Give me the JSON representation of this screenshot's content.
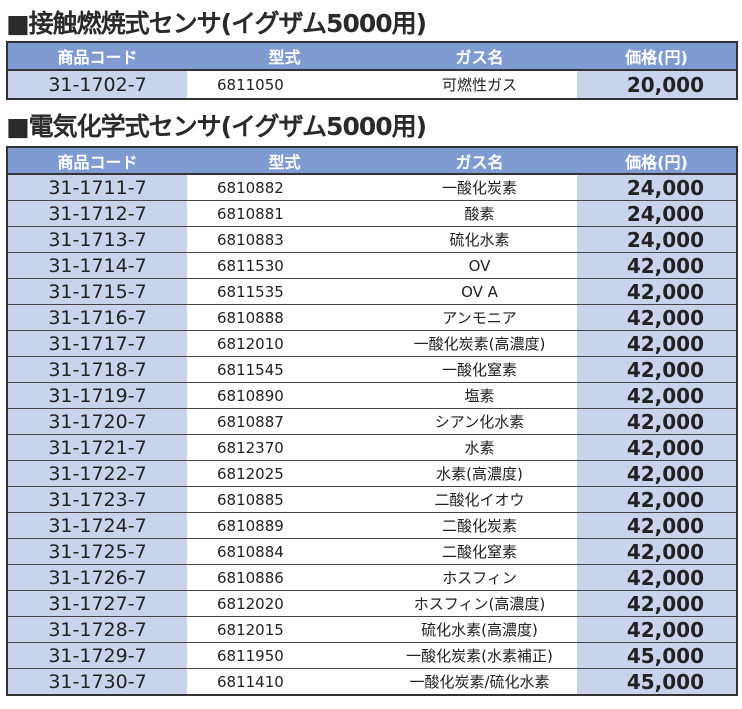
{
  "section1": {
    "title": "■接触燃焼式センサ(イグザム5000用)",
    "headers": [
      "商品コード",
      "型式",
      "ガス名",
      "価格(円)"
    ],
    "rows": [
      [
        "31-1702-7",
        "6811050",
        "可燃性ガス",
        "20,000"
      ]
    ]
  },
  "section2": {
    "title": "■電気化学式センサ(イグザム5000用)",
    "headers": [
      "商品コード",
      "型式",
      "ガス名",
      "価格(円)"
    ],
    "rows": [
      [
        "31-1711-7",
        "6810882",
        "一酸化炭素",
        "24,000"
      ],
      [
        "31-1712-7",
        "6810881",
        "酸素",
        "24,000"
      ],
      [
        "31-1713-7",
        "6810883",
        "硫化水素",
        "24,000"
      ],
      [
        "31-1714-7",
        "6811530",
        "OV",
        "42,000"
      ],
      [
        "31-1715-7",
        "6811535",
        "OV A",
        "42,000"
      ],
      [
        "31-1716-7",
        "6810888",
        "アンモニア",
        "42,000"
      ],
      [
        "31-1717-7",
        "6812010",
        "一酸化炭素(高濃度)",
        "42,000"
      ],
      [
        "31-1718-7",
        "6811545",
        "一酸化窒素",
        "42,000"
      ],
      [
        "31-1719-7",
        "6810890",
        "塩素",
        "42,000"
      ],
      [
        "31-1720-7",
        "6810887",
        "シアン化水素",
        "42,000"
      ],
      [
        "31-1721-7",
        "6812370",
        "水素",
        "42,000"
      ],
      [
        "31-1722-7",
        "6812025",
        "水素(高濃度)",
        "42,000"
      ],
      [
        "31-1723-7",
        "6810885",
        "二酸化イオウ",
        "42,000"
      ],
      [
        "31-1724-7",
        "6810889",
        "二酸化炭素",
        "42,000"
      ],
      [
        "31-1725-7",
        "6810884",
        "二酸化窒素",
        "42,000"
      ],
      [
        "31-1726-7",
        "6810886",
        "ホスフィン",
        "42,000"
      ],
      [
        "31-1727-7",
        "6812020",
        "ホスフィン(高濃度)",
        "42,000"
      ],
      [
        "31-1728-7",
        "6812015",
        "硫化水素(高濃度)",
        "42,000"
      ],
      [
        "31-1729-7",
        "6811950",
        "一酸化炭素(水素補正)",
        "45,000"
      ],
      [
        "31-1730-7",
        "6811410",
        "一酸化炭素/硫化水素",
        "45,000"
      ]
    ]
  }
}
